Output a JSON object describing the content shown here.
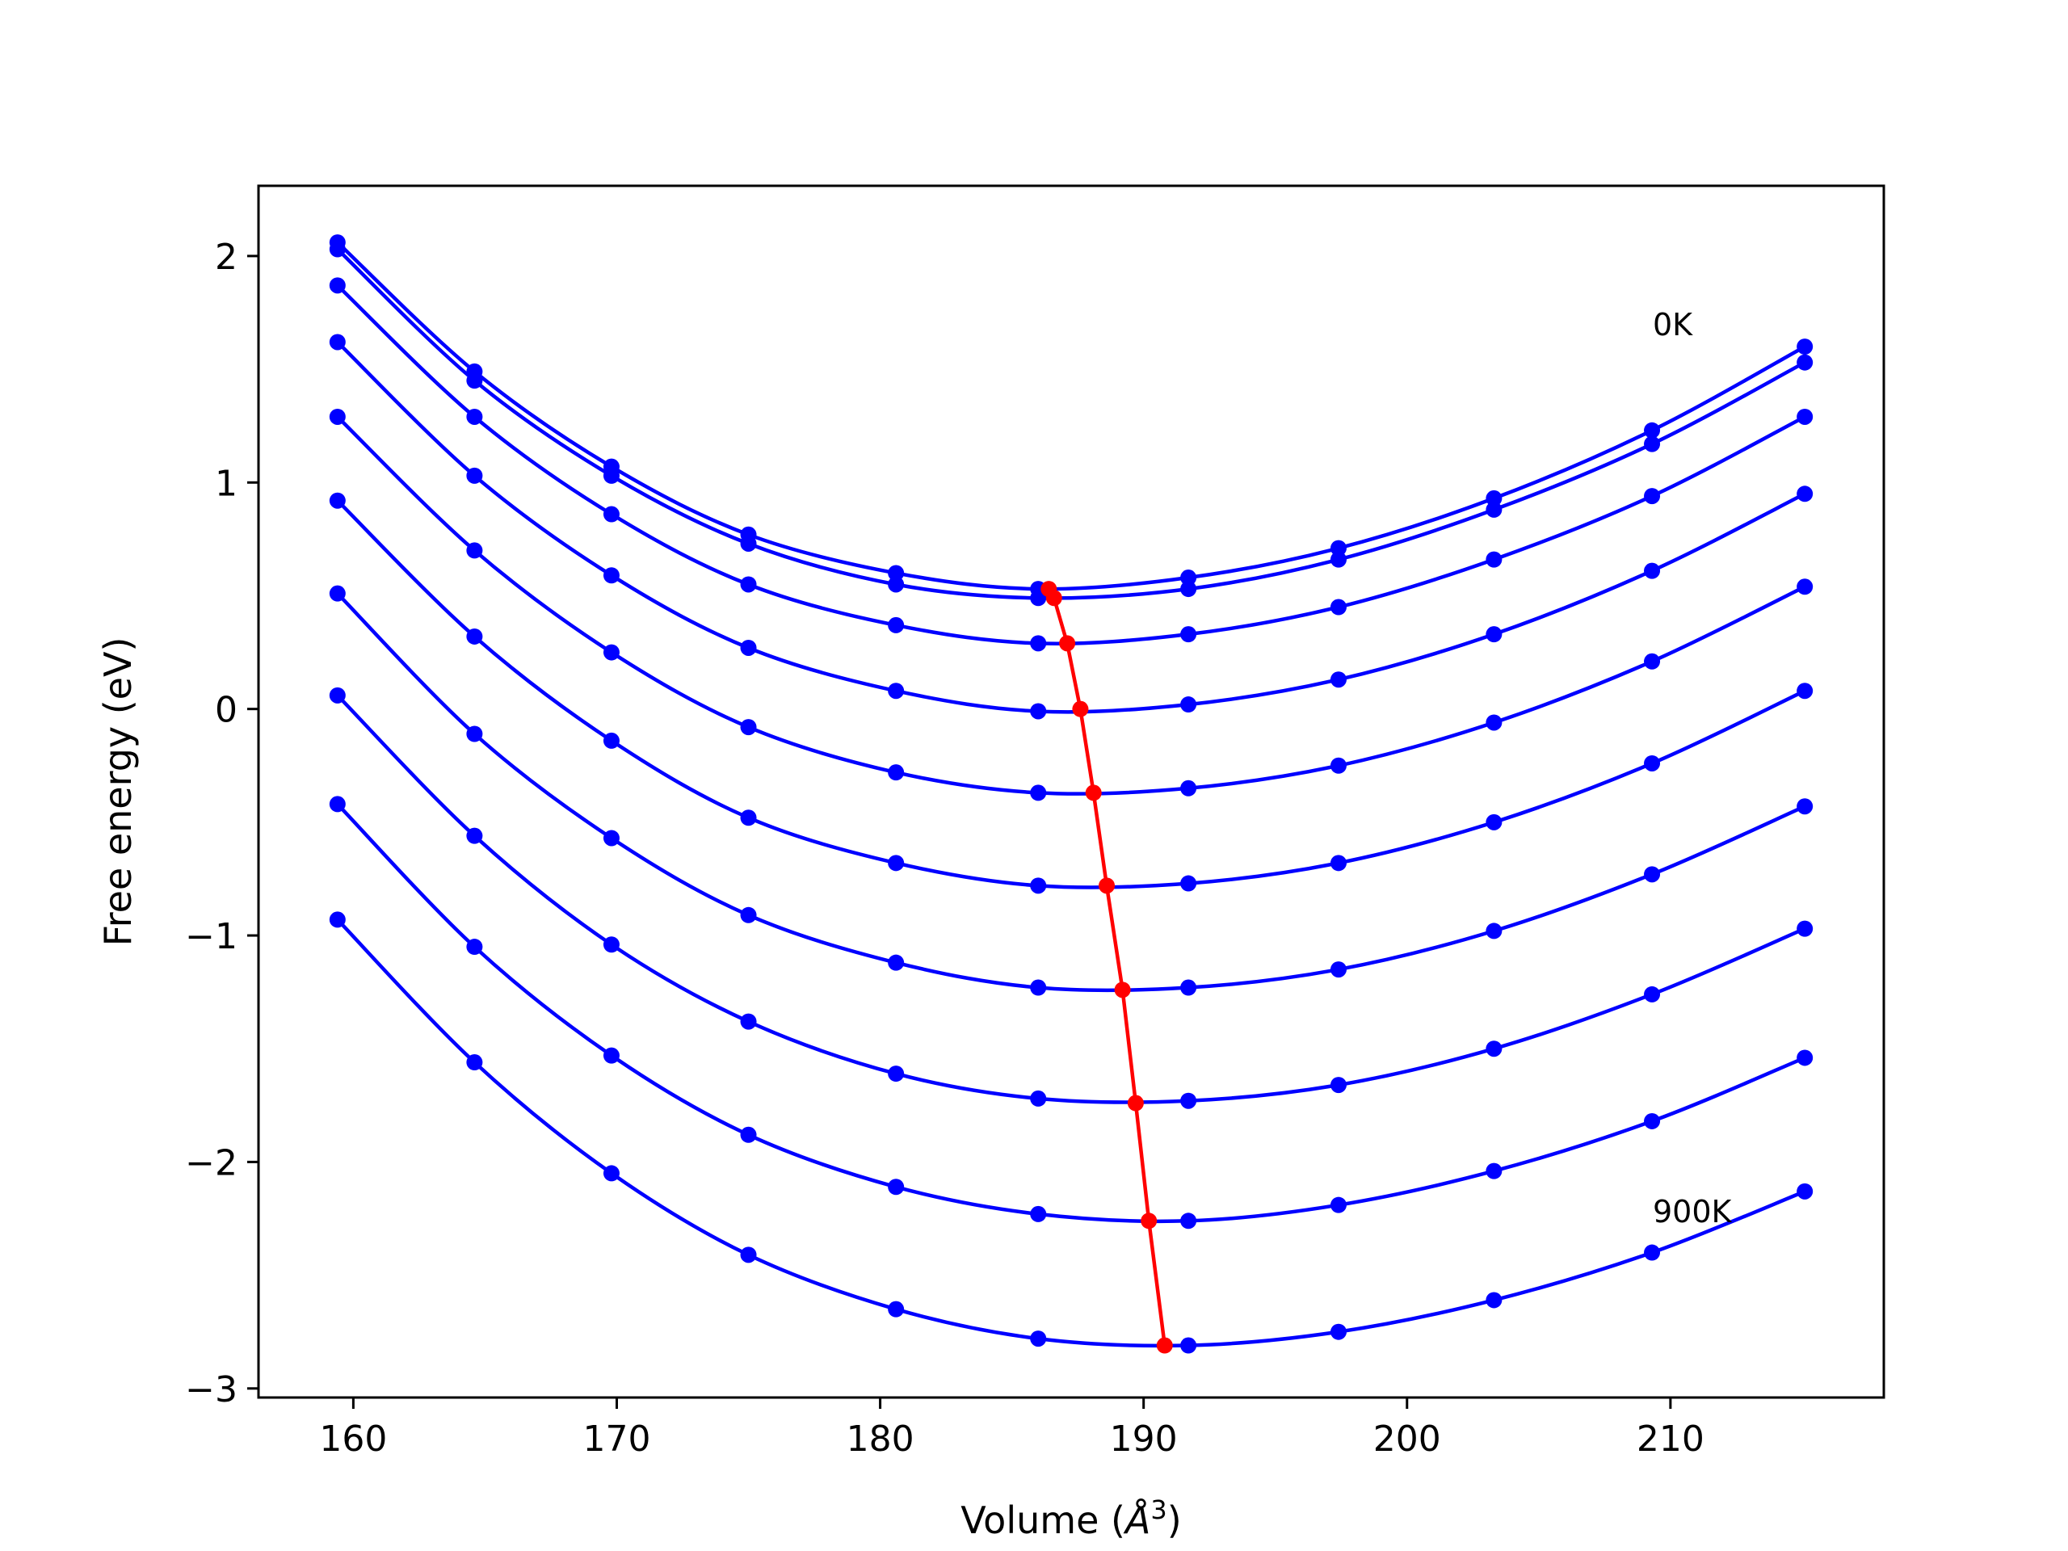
{
  "chart_data": {
    "type": "line",
    "xlabel": "Volume (",
    "xlabel_unit": "Å",
    "xlabel_exp": "3",
    "xlabel_close": ")",
    "ylabel": "Free energy (eV)",
    "xlim": [
      156.4,
      218.1
    ],
    "ylim": [
      -3.04,
      2.31
    ],
    "xticks": [
      160,
      170,
      180,
      190,
      200,
      210
    ],
    "yticks": [
      -3,
      -2,
      -1,
      0,
      1,
      2
    ],
    "xtick_labels": [
      "160",
      "170",
      "180",
      "190",
      "200",
      "210"
    ],
    "ytick_labels": [
      "−3",
      "−2",
      "−1",
      "0",
      "1",
      "2"
    ],
    "grid": false,
    "annotations": [
      {
        "text": "0K",
        "x": 209.3,
        "y": 1.69
      },
      {
        "text": "900K",
        "x": 209.3,
        "y": -2.23
      }
    ],
    "x": [
      159.4,
      164.6,
      169.8,
      175.0,
      180.6,
      186.0,
      191.7,
      197.4,
      203.3,
      209.3,
      215.1
    ],
    "series": [
      {
        "values": [
          2.06,
          1.49,
          1.07,
          0.77,
          0.6,
          0.53,
          0.58,
          0.71,
          0.93,
          1.23,
          1.6
        ]
      },
      {
        "values": [
          2.03,
          1.45,
          1.03,
          0.73,
          0.55,
          0.49,
          0.53,
          0.66,
          0.88,
          1.17,
          1.53
        ]
      },
      {
        "values": [
          1.87,
          1.29,
          0.86,
          0.55,
          0.37,
          0.29,
          0.33,
          0.45,
          0.66,
          0.94,
          1.29
        ]
      },
      {
        "values": [
          1.62,
          1.03,
          0.59,
          0.27,
          0.08,
          -0.01,
          0.02,
          0.13,
          0.33,
          0.61,
          0.95
        ]
      },
      {
        "values": [
          1.29,
          0.7,
          0.25,
          -0.08,
          -0.28,
          -0.37,
          -0.35,
          -0.25,
          -0.06,
          0.21,
          0.54
        ]
      },
      {
        "values": [
          0.92,
          0.32,
          -0.14,
          -0.48,
          -0.68,
          -0.78,
          -0.77,
          -0.68,
          -0.5,
          -0.24,
          0.08
        ]
      },
      {
        "values": [
          0.51,
          -0.11,
          -0.57,
          -0.91,
          -1.12,
          -1.23,
          -1.23,
          -1.15,
          -0.98,
          -0.73,
          -0.43
        ]
      },
      {
        "values": [
          0.06,
          -0.56,
          -1.04,
          -1.38,
          -1.61,
          -1.72,
          -1.73,
          -1.66,
          -1.5,
          -1.26,
          -0.97
        ]
      },
      {
        "values": [
          -0.42,
          -1.05,
          -1.53,
          -1.88,
          -2.11,
          -2.23,
          -2.26,
          -2.19,
          -2.04,
          -1.82,
          -1.54
        ]
      },
      {
        "values": [
          -0.93,
          -1.56,
          -2.05,
          -2.41,
          -2.65,
          -2.78,
          -2.81,
          -2.75,
          -2.61,
          -2.4,
          -2.13
        ]
      }
    ],
    "minima": {
      "color": "#ff0000",
      "x": [
        186.4,
        186.6,
        187.1,
        187.6,
        188.1,
        188.6,
        189.2,
        189.7,
        190.2,
        190.8
      ],
      "y": [
        0.53,
        0.49,
        0.29,
        -0.0,
        -0.37,
        -0.78,
        -1.24,
        -1.74,
        -2.26,
        -2.81
      ]
    },
    "series_color": "#0000ff",
    "axis_color": "#000000"
  }
}
